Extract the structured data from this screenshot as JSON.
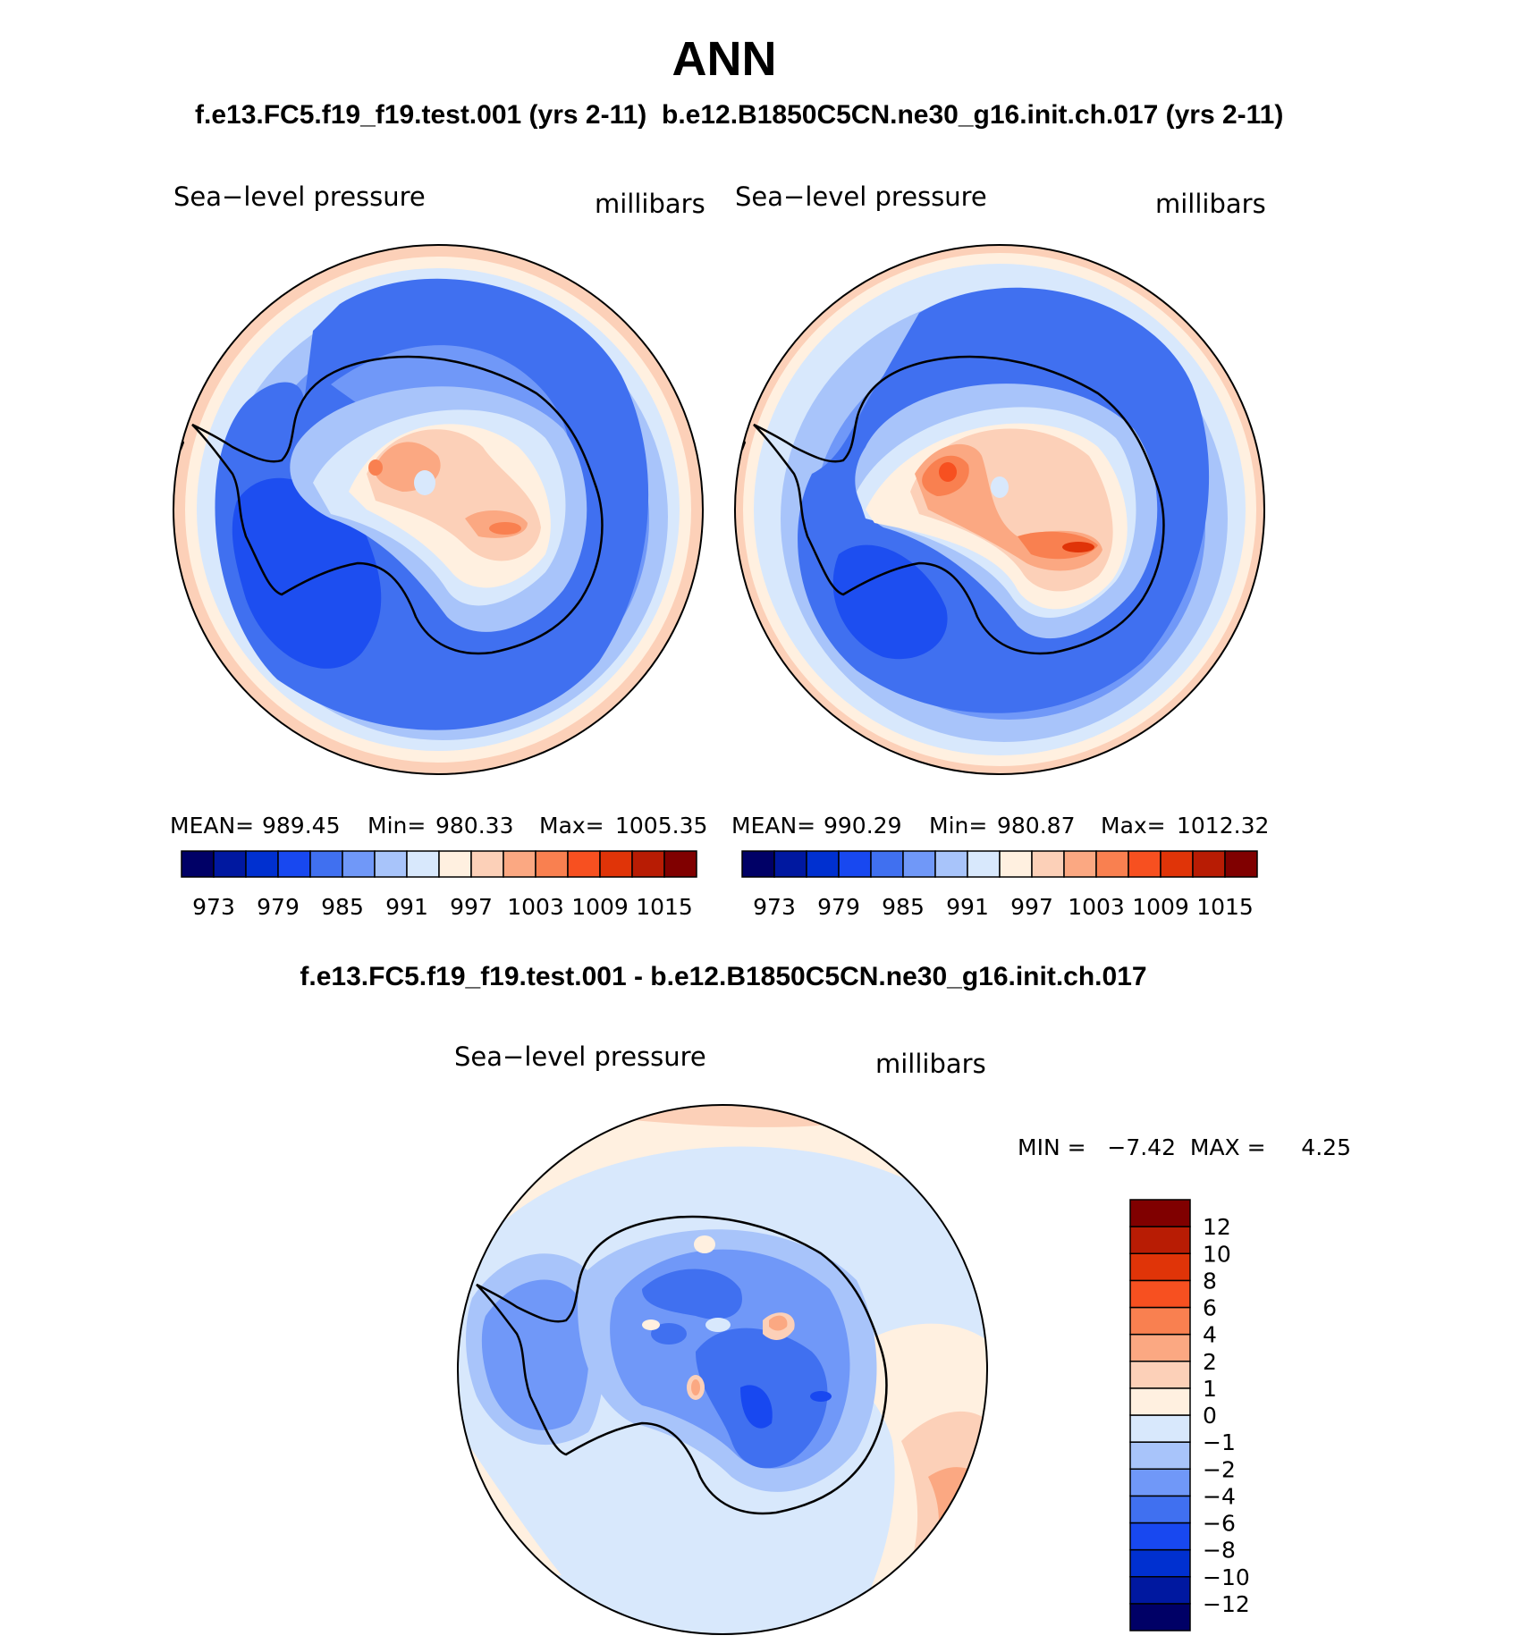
{
  "season": "ANN",
  "panels": [
    {
      "case_title": "f.e13.FC5.f19_f19.test.001 (yrs 2-11)",
      "left_label": "Sea−level pressure",
      "right_label": "millibars",
      "stats": {
        "mean_label": "MEAN=",
        "mean": "989.45",
        "min_label": "Min=",
        "min": "980.33",
        "max_label": "Max=",
        "max": "1005.35"
      }
    },
    {
      "case_title": "b.e12.B1850C5CN.ne30_g16.init.ch.017 (yrs 2-11)",
      "left_label": "Sea−level pressure",
      "right_label": "millibars",
      "stats": {
        "mean_label": "MEAN=",
        "mean": "990.29",
        "min_label": "Min=",
        "min": "980.87",
        "max_label": "Max=",
        "max": "1012.32"
      }
    }
  ],
  "diff_panel": {
    "title": "f.e13.FC5.f19_f19.test.001 - b.e12.B1850C5CN.ne30_g16.init.ch.017",
    "left_label": "Sea−level pressure",
    "right_label": "millibars",
    "minmax_text": "MIN =   −7.42  MAX =     4.25"
  },
  "colorbar_abs": {
    "colors": [
      "#000066",
      "#0018a0",
      "#0030d0",
      "#1848f0",
      "#4070f0",
      "#7098f8",
      "#a8c4fa",
      "#d8e8fc",
      "#fff0e0",
      "#fcd0b8",
      "#fba882",
      "#f98050",
      "#f75020",
      "#e03408",
      "#b81c04",
      "#800000"
    ],
    "tick_labels": [
      "973",
      "979",
      "985",
      "991",
      "997",
      "1003",
      "1009",
      "1015"
    ]
  },
  "colorbar_diff": {
    "colors": [
      "#000066",
      "#0018a0",
      "#0030d0",
      "#1848f0",
      "#4070f0",
      "#7098f8",
      "#a8c4fa",
      "#d8e8fc",
      "#fff0e0",
      "#fcd0b8",
      "#fba882",
      "#f98050",
      "#f75020",
      "#e03408",
      "#b81c04",
      "#800000"
    ],
    "tick_labels": [
      "12",
      "10",
      "8",
      "6",
      "4",
      "2",
      "1",
      "0",
      "−1",
      "−2",
      "−4",
      "−6",
      "−8",
      "−10",
      "−12"
    ]
  },
  "chart_data": [
    {
      "type": "heatmap",
      "projection": "south-polar-stereographic",
      "title": "f.e13.FC5.f19_f19.test.001 (yrs 2-11)",
      "variable": "Sea−level pressure",
      "units": "millibars",
      "mean": 989.45,
      "min": 980.33,
      "max": 1005.35,
      "contour_levels": [
        973,
        976,
        979,
        982,
        985,
        988,
        991,
        994,
        997,
        1000,
        1003,
        1006,
        1009,
        1012,
        1015
      ]
    },
    {
      "type": "heatmap",
      "projection": "south-polar-stereographic",
      "title": "b.e12.B1850C5CN.ne30_g16.init.ch.017 (yrs 2-11)",
      "variable": "Sea−level pressure",
      "units": "millibars",
      "mean": 990.29,
      "min": 980.87,
      "max": 1012.32,
      "contour_levels": [
        973,
        976,
        979,
        982,
        985,
        988,
        991,
        994,
        997,
        1000,
        1003,
        1006,
        1009,
        1012,
        1015
      ]
    },
    {
      "type": "heatmap",
      "projection": "south-polar-stereographic",
      "title": "f.e13.FC5.f19_f19.test.001 - b.e12.B1850C5CN.ne30_g16.init.ch.017",
      "variable": "Sea−level pressure",
      "units": "millibars",
      "min": -7.42,
      "max": 4.25,
      "contour_levels": [
        -12,
        -10,
        -8,
        -6,
        -4,
        -2,
        -1,
        0,
        1,
        2,
        4,
        6,
        8,
        10,
        12
      ]
    }
  ]
}
